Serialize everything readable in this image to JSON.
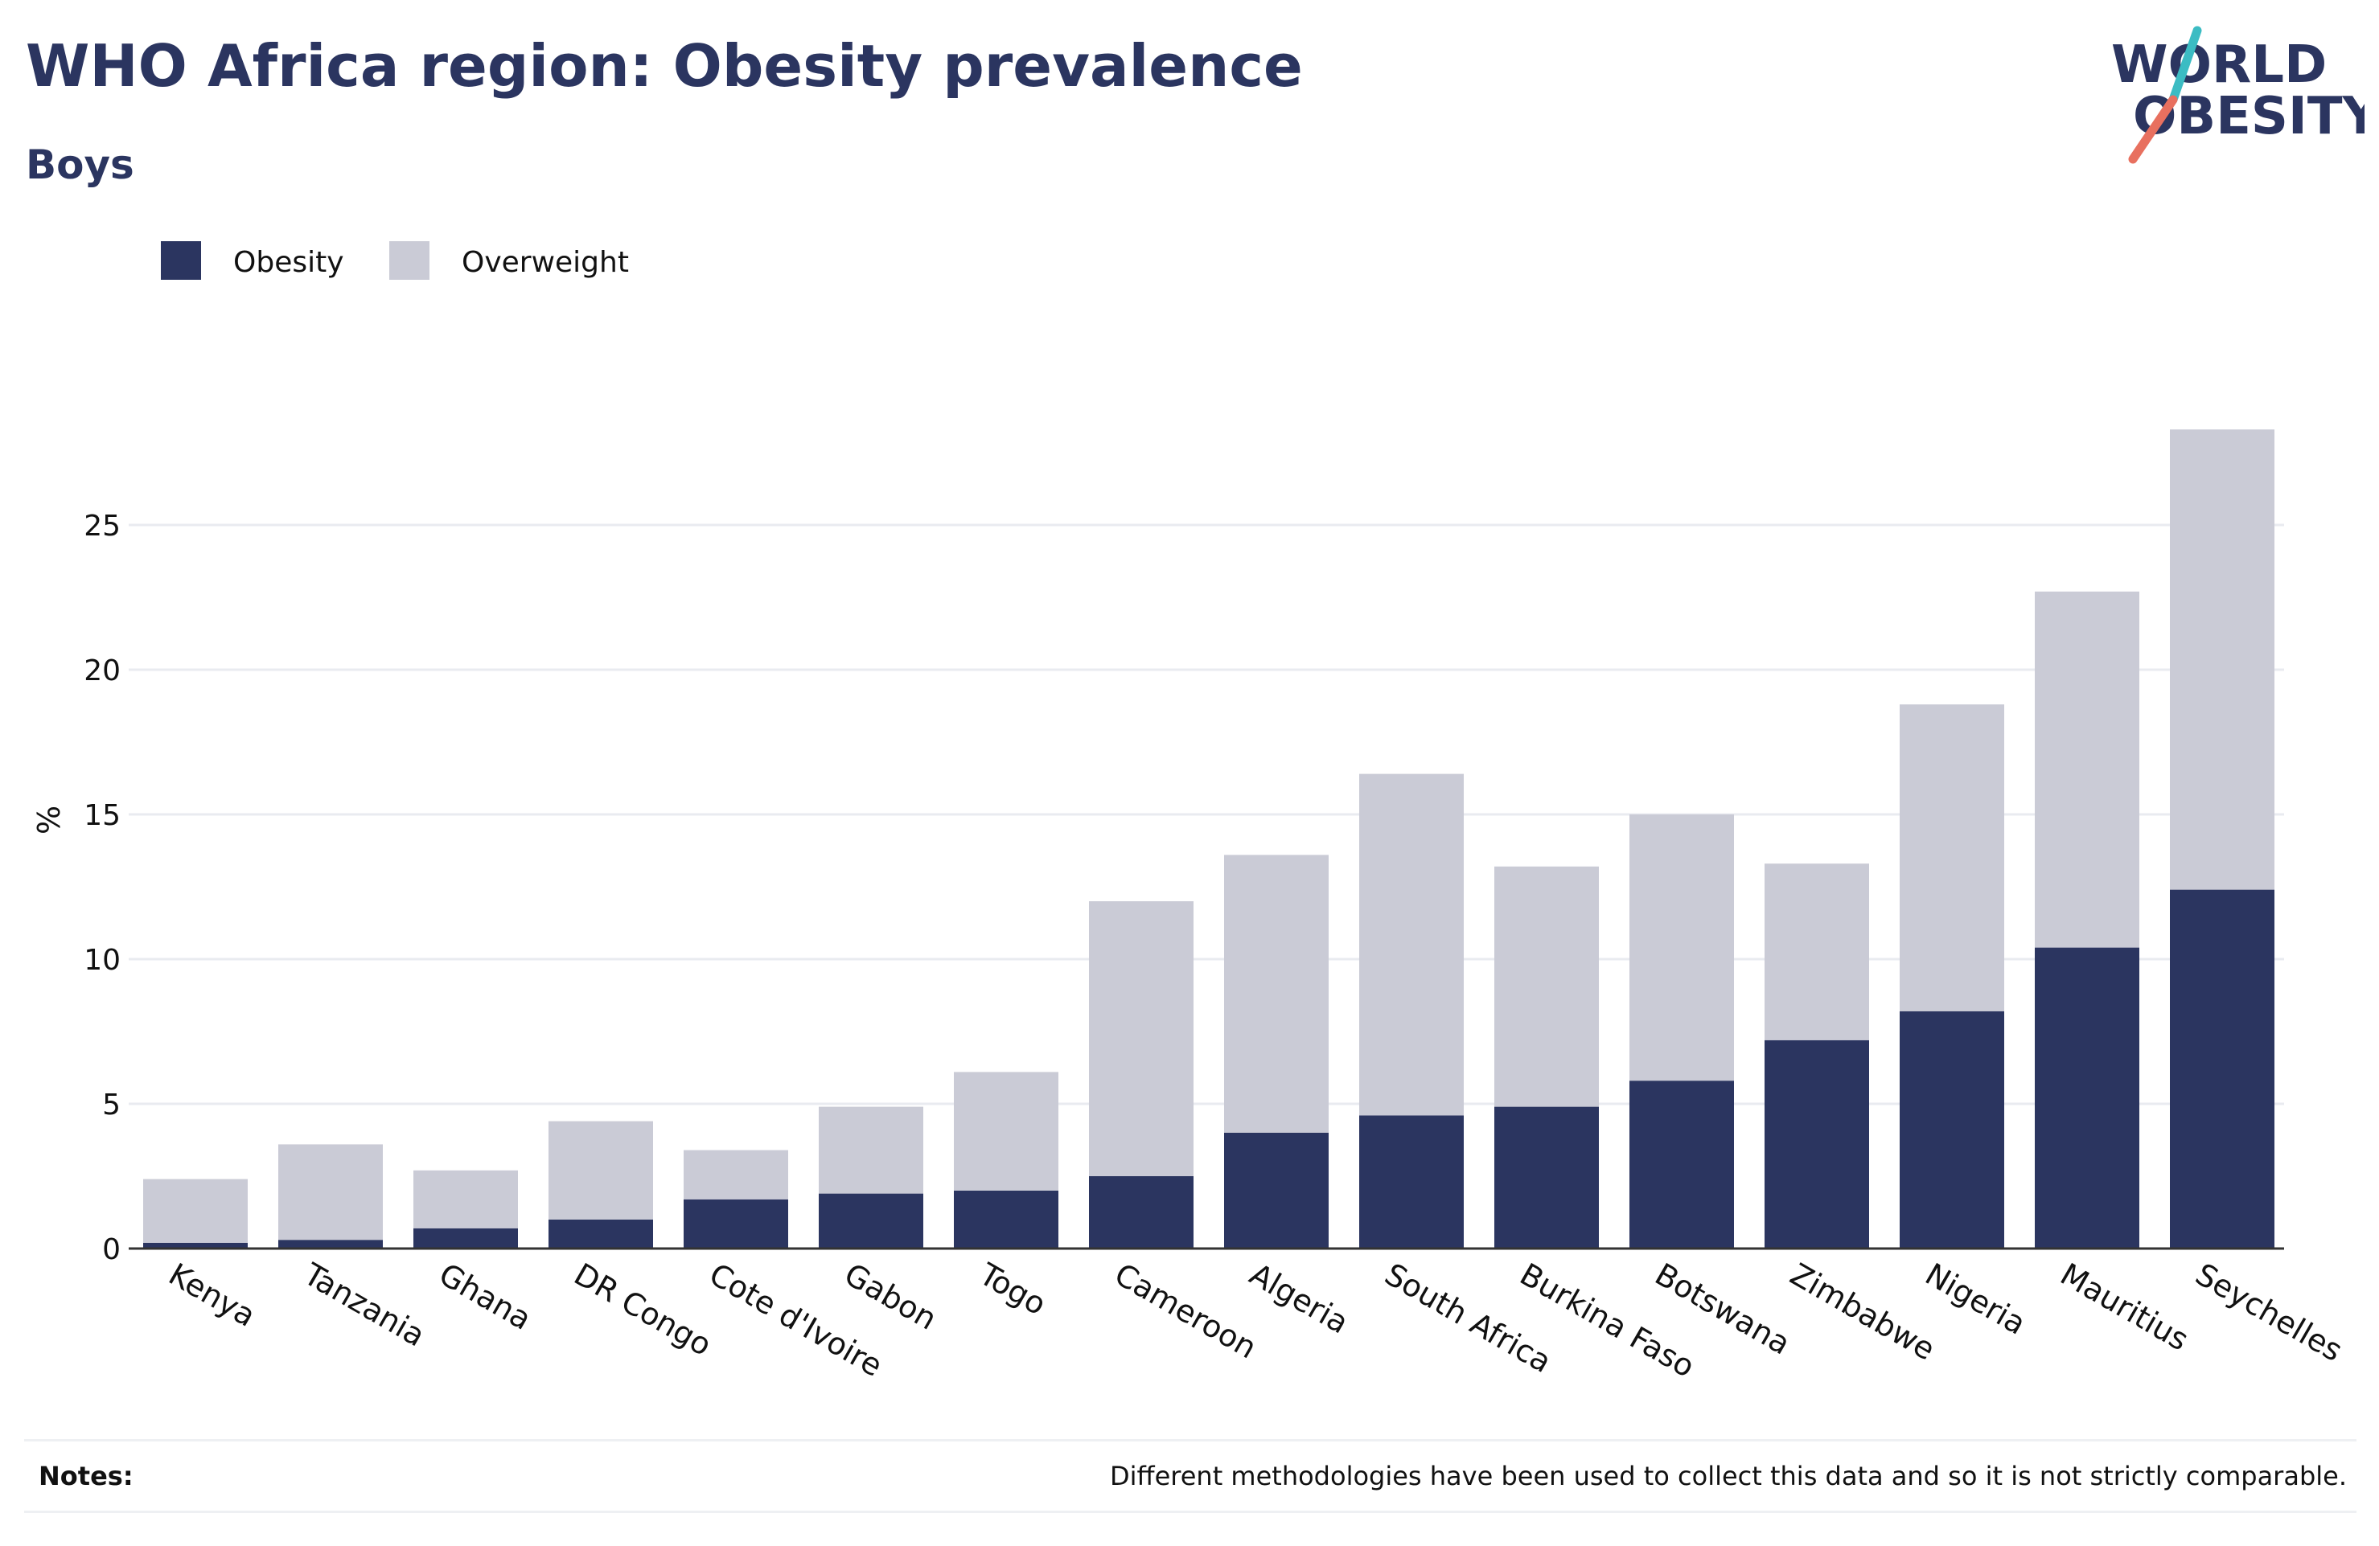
{
  "header": {
    "title": "WHO Africa region: Obesity prevalence",
    "subtitle": "Boys"
  },
  "logo": {
    "line1": "WORLD",
    "line2": "OBESITY",
    "text_color": "#2b3560",
    "accent_teal": "#3cbcc3",
    "accent_coral": "#e8705f"
  },
  "notes": {
    "label": "Notes:",
    "text": "Different methodologies have been used to collect this data and so it is not strictly comparable."
  },
  "chart_data": {
    "type": "bar",
    "stacked": true,
    "categories": [
      "Kenya",
      "Tanzania",
      "Ghana",
      "DR Congo",
      "Cote d'Ivoire",
      "Gabon",
      "Togo",
      "Cameroon",
      "Algeria",
      "South Africa",
      "Burkina Faso",
      "Botswana",
      "Zimbabwe",
      "Nigeria",
      "Mauritius",
      "Seychelles"
    ],
    "series": [
      {
        "name": "Obesity",
        "color": "#2b3560",
        "values": [
          0.2,
          0.3,
          0.7,
          1.0,
          1.7,
          1.9,
          2.0,
          2.5,
          4.0,
          4.6,
          4.9,
          5.8,
          7.2,
          8.2,
          10.4,
          12.4
        ]
      },
      {
        "name": "Overweight",
        "color": "#cacbd6",
        "values": [
          2.2,
          3.3,
          2.0,
          3.4,
          1.7,
          3.0,
          4.1,
          9.5,
          9.6,
          11.8,
          8.3,
          9.2,
          6.1,
          10.6,
          12.3,
          15.9
        ]
      }
    ],
    "xlabel": "",
    "ylabel": "%",
    "ylim": [
      0,
      30
    ],
    "yticks": [
      0,
      5,
      10,
      15,
      20,
      25
    ],
    "grid": true,
    "legend": "top-left"
  }
}
